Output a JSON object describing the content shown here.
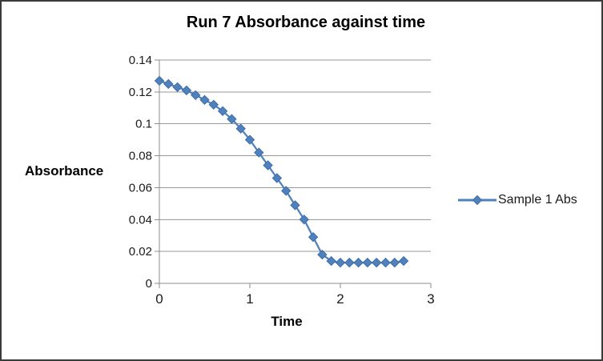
{
  "frame": {
    "background": "#ffffff",
    "border_color": "#3b3b3b"
  },
  "chart_data": {
    "type": "line",
    "title": "Run 7 Absorbance against time",
    "xlabel": "Time",
    "ylabel": "Absorbance",
    "xlim": [
      0,
      3
    ],
    "ylim": [
      0,
      0.14
    ],
    "x_ticks": [
      0,
      1,
      2,
      3
    ],
    "x_tick_labels": [
      "0",
      "1",
      "2",
      "3"
    ],
    "y_ticks": [
      0,
      0.02,
      0.04,
      0.06,
      0.08,
      0.1,
      0.12,
      0.14
    ],
    "y_tick_labels": [
      "0",
      "0.02",
      "0.04",
      "0.06",
      "0.08",
      "0.1",
      "0.12",
      "0.14"
    ],
    "grid": "horizontal",
    "legend_position": "right",
    "series": [
      {
        "name": "Sample 1 Abs",
        "color": "#4f81bd",
        "marker": "diamond",
        "x": [
          0,
          0.1,
          0.2,
          0.3,
          0.4,
          0.5,
          0.6,
          0.7,
          0.8,
          0.9,
          1.0,
          1.1,
          1.2,
          1.3,
          1.4,
          1.5,
          1.6,
          1.7,
          1.8,
          1.9,
          2.0,
          2.1,
          2.2,
          2.3,
          2.4,
          2.5,
          2.6,
          2.7
        ],
        "y": [
          0.127,
          0.125,
          0.123,
          0.121,
          0.118,
          0.115,
          0.112,
          0.108,
          0.103,
          0.097,
          0.09,
          0.082,
          0.074,
          0.066,
          0.058,
          0.049,
          0.04,
          0.029,
          0.018,
          0.014,
          0.013,
          0.013,
          0.013,
          0.013,
          0.013,
          0.013,
          0.013,
          0.014
        ]
      }
    ]
  }
}
